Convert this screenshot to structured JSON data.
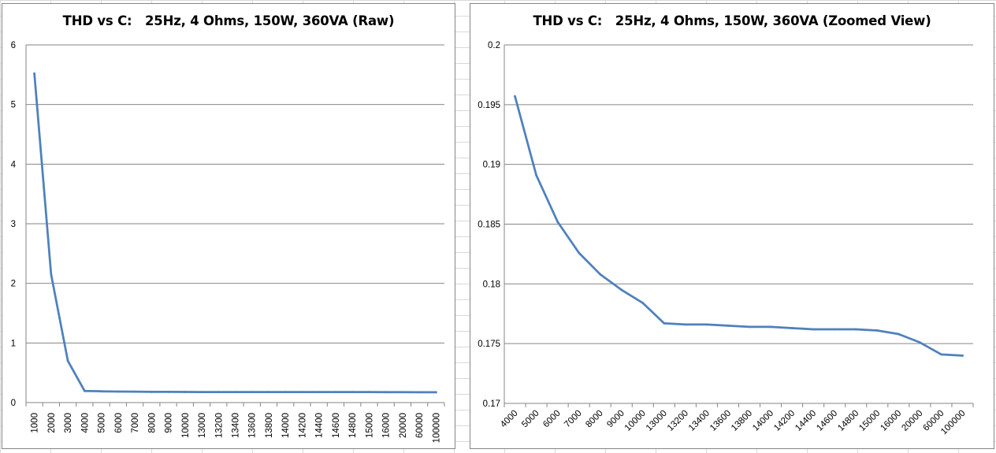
{
  "colors": {
    "series": "#4f81bd",
    "gridline": "#868686",
    "axis": "#868686",
    "sheet_grid": "#d9d9d9"
  },
  "chart_data": [
    {
      "type": "line",
      "title": "THD vs C:   25Hz, 4 Ohms, 150W, 360VA (Raw)",
      "xlabel": "",
      "ylabel": "",
      "categories": [
        "1000",
        "2000",
        "3000",
        "4000",
        "5000",
        "6000",
        "7000",
        "8000",
        "9000",
        "10000",
        "13000",
        "13200",
        "13400",
        "13600",
        "13800",
        "14000",
        "14200",
        "14400",
        "14600",
        "14800",
        "15000",
        "16000",
        "20000",
        "60000",
        "100000"
      ],
      "series": [
        {
          "values": [
            5.52,
            2.15,
            0.7,
            0.1957,
            0.1891,
            0.1852,
            0.1826,
            0.1808,
            0.1795,
            0.1784,
            0.1767,
            0.1766,
            0.1766,
            0.1765,
            0.1764,
            0.1764,
            0.1763,
            0.1762,
            0.1762,
            0.1762,
            0.1761,
            0.1758,
            0.1751,
            0.1741,
            0.174
          ]
        }
      ],
      "ylim": [
        0,
        6
      ],
      "yticks": [
        0,
        1,
        2,
        3,
        4,
        5,
        6
      ],
      "ytick_labels": [
        "0",
        "1",
        "2",
        "3",
        "4",
        "5",
        "6"
      ],
      "grid": true,
      "legend": "none"
    },
    {
      "type": "line",
      "title": "THD vs C:   25Hz, 4 Ohms, 150W, 360VA (Zoomed View)",
      "xlabel": "",
      "ylabel": "",
      "categories": [
        "4000",
        "5000",
        "6000",
        "7000",
        "8000",
        "9000",
        "10000",
        "13000",
        "13200",
        "13400",
        "13600",
        "13800",
        "14000",
        "14200",
        "14400",
        "14600",
        "14800",
        "15000",
        "16000",
        "20000",
        "60000",
        "100000"
      ],
      "series": [
        {
          "values": [
            0.1957,
            0.1891,
            0.1852,
            0.1826,
            0.1808,
            0.1795,
            0.1784,
            0.1767,
            0.1766,
            0.1766,
            0.1765,
            0.1764,
            0.1764,
            0.1763,
            0.1762,
            0.1762,
            0.1762,
            0.1761,
            0.1758,
            0.1751,
            0.1741,
            0.174
          ]
        }
      ],
      "ylim": [
        0.17,
        0.2
      ],
      "yticks": [
        0.17,
        0.175,
        0.18,
        0.185,
        0.19,
        0.195,
        0.2
      ],
      "ytick_labels": [
        "0.17",
        "0.175",
        "0.18",
        "0.185",
        "0.19",
        "0.195",
        "0.2"
      ],
      "grid": true,
      "legend": "none"
    }
  ]
}
